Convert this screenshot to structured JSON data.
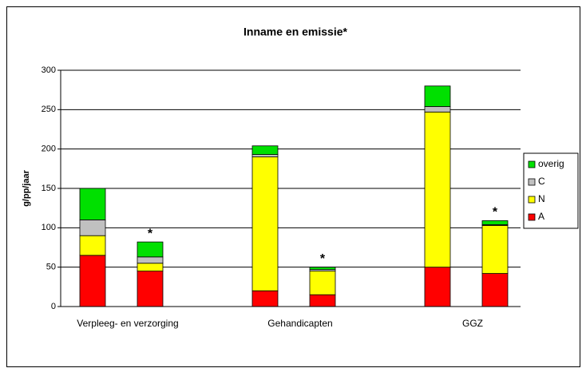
{
  "chart_data": {
    "type": "stacked_bar",
    "title": "Inname en emissie*",
    "y_label": "g/pp/jaar",
    "categories": [
      "Verpleeg- en verzorging",
      "Gehandicapten",
      "GGZ"
    ],
    "series": [
      {
        "name": "A",
        "color": "#ff0000",
        "values": [
          [
            65,
            45
          ],
          [
            20,
            15
          ],
          [
            50,
            42
          ]
        ]
      },
      {
        "name": "N",
        "color": "#ffff00",
        "values": [
          [
            25,
            10
          ],
          [
            170,
            30
          ],
          [
            197,
            61
          ]
        ]
      },
      {
        "name": "C",
        "color": "#c0c0c0",
        "values": [
          [
            20,
            8
          ],
          [
            3,
            2
          ],
          [
            7,
            1
          ]
        ]
      },
      {
        "name": "overig",
        "color": "#00e000",
        "values": [
          [
            40,
            19
          ],
          [
            11,
            3
          ],
          [
            26,
            5
          ]
        ]
      }
    ],
    "annotations": [
      "*",
      "*",
      "*"
    ],
    "ylim": [
      0,
      300
    ],
    "yticks": [
      0,
      50,
      100,
      150,
      200,
      250,
      300
    ],
    "grid": true,
    "legend": "right"
  }
}
